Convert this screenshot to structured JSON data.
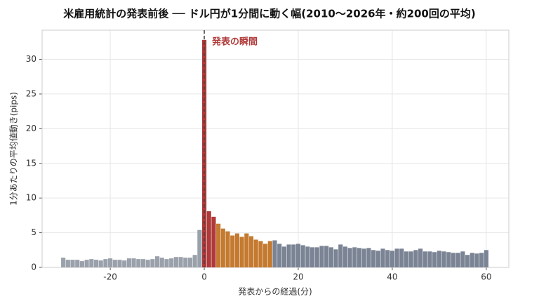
{
  "chart_data": {
    "type": "bar",
    "title": "米雇用統計の発表前後 ── ドル円が1分間に動く幅(2010〜2026年・約200回の平均)",
    "xlabel": "発表からの経過(分)",
    "ylabel": "1分あたりの平均値動き(pips)",
    "annotation": {
      "text": "発表の瞬間",
      "x": 0,
      "color": "#b03a3a"
    },
    "series": [
      {
        "color": "#9aa1ab",
        "x": [
          -30,
          -29,
          -28,
          -27,
          -26,
          -25,
          -24,
          -23,
          -22,
          -21,
          -20,
          -19,
          -18,
          -17,
          -16,
          -15,
          -14,
          -13,
          -12,
          -11,
          -10,
          -9,
          -8,
          -7,
          -6,
          -5,
          -4,
          -3,
          -2,
          -1
        ],
        "values": [
          1.4,
          1.1,
          1.1,
          1.1,
          0.9,
          1.1,
          1.2,
          1.1,
          1.0,
          1.2,
          1.3,
          1.1,
          1.1,
          1.0,
          1.3,
          1.3,
          1.2,
          1.2,
          1.1,
          1.2,
          1.6,
          1.4,
          1.2,
          1.3,
          1.5,
          1.5,
          1.4,
          1.4,
          1.8,
          5.4
        ]
      },
      {
        "color": "#b03a3a",
        "x": [
          0,
          1,
          2
        ],
        "values": [
          32.8,
          8.1,
          7.3
        ]
      },
      {
        "color": "#c47a30",
        "x": [
          3,
          4,
          5,
          6,
          7,
          8,
          9,
          10,
          11,
          12,
          13,
          14
        ],
        "values": [
          6.3,
          5.6,
          5.2,
          4.6,
          4.9,
          4.4,
          4.9,
          4.5,
          4.0,
          3.8,
          3.4,
          3.8
        ]
      },
      {
        "color": "#7b8494",
        "x": [
          15,
          16,
          17,
          18,
          19,
          20,
          21,
          22,
          23,
          24,
          25,
          26,
          27,
          28,
          29,
          30,
          31,
          32,
          33,
          34,
          35,
          36,
          37,
          38,
          39,
          40,
          41,
          42,
          43,
          44,
          45,
          46,
          47,
          48,
          49,
          50,
          51,
          52,
          53,
          54,
          55,
          56,
          57,
          58,
          59,
          60
        ],
        "values": [
          3.9,
          3.4,
          3.0,
          3.3,
          3.3,
          3.4,
          3.2,
          3.0,
          2.9,
          2.9,
          3.1,
          3.1,
          2.9,
          2.6,
          3.3,
          3.0,
          2.8,
          2.9,
          2.8,
          2.7,
          2.8,
          2.5,
          2.4,
          2.7,
          2.5,
          2.4,
          2.7,
          2.7,
          2.3,
          2.3,
          2.5,
          2.7,
          2.3,
          2.3,
          2.2,
          2.4,
          2.3,
          2.2,
          2.1,
          2.1,
          2.3,
          1.8,
          2.1,
          2.0,
          2.1,
          2.5
        ]
      }
    ],
    "xlim": [
      -34.5,
      64.8
    ],
    "xticks": [
      -20,
      0,
      20,
      40,
      60
    ],
    "ylim": [
      0,
      34.2
    ],
    "yticks": [
      0,
      5,
      10,
      15,
      20,
      25,
      30
    ],
    "grid": true
  }
}
